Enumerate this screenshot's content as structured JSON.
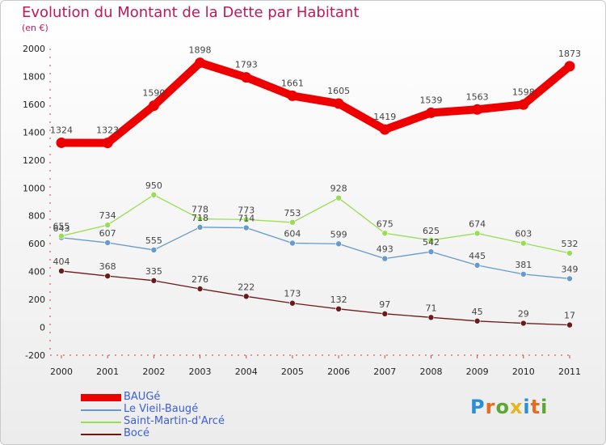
{
  "chart_data": {
    "type": "line",
    "title": "Evolution du Montant de la Dette par Habitant",
    "subtitle": "(en €)",
    "ylim": [
      -200,
      2000
    ],
    "yticks": [
      -200,
      0,
      200,
      400,
      600,
      800,
      1000,
      1200,
      1400,
      1600,
      1800,
      2000
    ],
    "x": [
      "2000",
      "2001",
      "2002",
      "2003",
      "2004",
      "2005",
      "2006",
      "2007",
      "2008",
      "2009",
      "2010",
      "2011"
    ],
    "series": [
      {
        "name": "BAUGé",
        "color": "#ee0000",
        "values": [
          1324,
          1323,
          1590,
          1898,
          1793,
          1661,
          1605,
          1419,
          1539,
          1563,
          1598,
          1873
        ]
      },
      {
        "name": "Le Vieil-Baugé",
        "color": "#6699cc",
        "values": [
          643,
          607,
          555,
          718,
          714,
          604,
          599,
          493,
          542,
          445,
          381,
          349
        ]
      },
      {
        "name": "Saint-Martin-d'Arcé",
        "color": "#99dd55",
        "values": [
          655,
          734,
          950,
          778,
          773,
          753,
          928,
          675,
          625,
          674,
          603,
          532
        ]
      },
      {
        "name": "Bocé",
        "color": "#6b1a1a",
        "values": [
          404,
          368,
          335,
          276,
          222,
          173,
          132,
          97,
          71,
          45,
          29,
          17
        ]
      }
    ],
    "grid": false,
    "legend": "bottom-left"
  },
  "branding": {
    "logo_letters": [
      "P",
      "r",
      "o",
      "x",
      "i",
      "t",
      "i"
    ],
    "logo_colors": [
      "#2a8fd6",
      "#e86b1f",
      "#5aa832",
      "#e8b51f",
      "#2a8fd6",
      "#e86b1f",
      "#5aa832"
    ]
  }
}
